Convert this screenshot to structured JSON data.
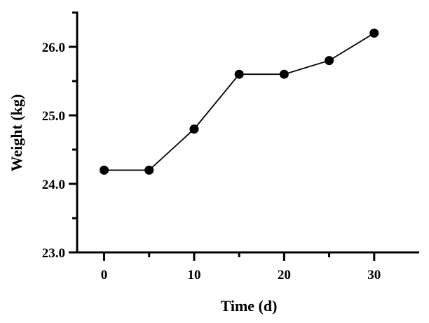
{
  "chart_data": {
    "type": "line",
    "xlabel": "Time (d)",
    "ylabel": "Weight (kg)",
    "xlim": [
      -3,
      35
    ],
    "ylim": [
      23.0,
      26.5
    ],
    "xticks": [
      0,
      10,
      20,
      30
    ],
    "xtick_labels": [
      "0",
      "10",
      "20",
      "30"
    ],
    "x_minor_ticks": [
      5,
      15,
      25
    ],
    "yticks": [
      23.0,
      24.0,
      25.0,
      26.0
    ],
    "ytick_labels": [
      "23.0",
      "24.0",
      "25.0",
      "26.0"
    ],
    "y_minor_ticks": [
      23.5,
      24.5,
      25.5,
      26.5
    ],
    "grid": false,
    "colors": {
      "series": "#000000",
      "axes": "#000000"
    },
    "series": [
      {
        "x": [
          0,
          5,
          10,
          15,
          20,
          25,
          30
        ],
        "values": [
          24.2,
          24.2,
          24.8,
          25.6,
          25.6,
          25.8,
          26.2
        ],
        "marker": "circle"
      }
    ]
  }
}
